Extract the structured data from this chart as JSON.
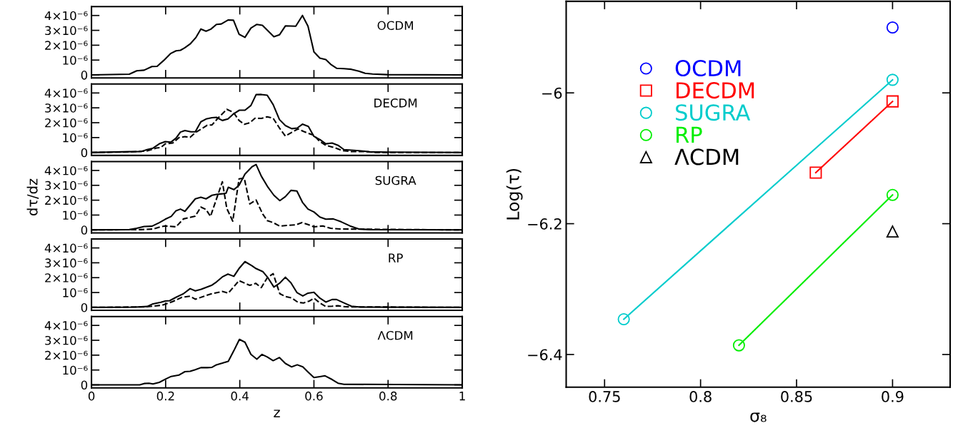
{
  "chart_data": [
    {
      "type": "line",
      "annotations": [
        "OCDM"
      ],
      "xlim": [
        0,
        1
      ],
      "xticks": [
        0,
        0.2,
        0.4,
        0.6,
        0.8,
        1
      ],
      "ylim": [
        -2e-07,
        4.6e-06
      ],
      "yticks": [
        0,
        {
          "value": 1e-06,
          "label": "10⁻⁶"
        },
        {
          "value": 2e-06,
          "label": "2×10⁻⁶"
        },
        {
          "value": 3e-06,
          "label": "3×10⁻⁶"
        },
        {
          "value": 4e-06,
          "label": "4×10⁻⁶"
        }
      ],
      "tick_labels": "y",
      "grid": false,
      "legend": false,
      "series": [
        {
          "color": "#000000",
          "line_style": "solid",
          "x": [
            0,
            0.102,
            0.122,
            0.142,
            0.163,
            0.177,
            0.195,
            0.214,
            0.228,
            0.24,
            0.252,
            0.266,
            0.282,
            0.295,
            0.309,
            0.322,
            0.337,
            0.35,
            0.369,
            0.383,
            0.398,
            0.414,
            0.43,
            0.446,
            0.461,
            0.492,
            0.507,
            0.523,
            0.551,
            0.569,
            0.584,
            0.6,
            0.616,
            0.632,
            0.645,
            0.661,
            0.681,
            0.701,
            0.721,
            0.738,
            0.758,
            0.798,
            1
          ],
          "values": [
            0,
            5e-08,
            2.8e-07,
            3.2e-07,
            5.7e-07,
            5.8e-07,
            9.8e-07,
            1.45e-06,
            1.62e-06,
            1.66e-06,
            1.83e-06,
            2.08e-06,
            2.53e-06,
            3.09e-06,
            2.94e-06,
            3.08e-06,
            3.4e-06,
            3.43e-06,
            3.7e-06,
            3.68e-06,
            2.74e-06,
            2.53e-06,
            3.15e-06,
            3.4e-06,
            3.34e-06,
            2.57e-06,
            2.7e-06,
            3.3e-06,
            3.28e-06,
            4e-06,
            3.28e-06,
            1.55e-06,
            1.13e-06,
            1.04e-06,
            7.2e-07,
            4.5e-07,
            4.2e-07,
            3.8e-07,
            2.6e-07,
            1.1e-07,
            6e-08,
            2e-08,
            0
          ]
        }
      ]
    },
    {
      "type": "line",
      "annotations": [
        "DECDM"
      ],
      "xlim": [
        0,
        1
      ],
      "xticks": [
        0,
        0.2,
        0.4,
        0.6,
        0.8,
        1
      ],
      "ylim": [
        -2e-07,
        4.6e-06
      ],
      "yticks": [
        0,
        {
          "value": 1e-06,
          "label": "10⁻⁶"
        },
        {
          "value": 2e-06,
          "label": "2×10⁻⁶"
        },
        {
          "value": 3e-06,
          "label": "3×10⁻⁶"
        },
        {
          "value": 4e-06,
          "label": "4×10⁻⁶"
        }
      ],
      "tick_labels": "y",
      "grid": false,
      "legend": false,
      "series": [
        {
          "color": "#000000",
          "line_style": "solid",
          "x": [
            0,
            0.102,
            0.134,
            0.15,
            0.166,
            0.183,
            0.199,
            0.214,
            0.228,
            0.24,
            0.252,
            0.268,
            0.28,
            0.295,
            0.309,
            0.325,
            0.337,
            0.353,
            0.368,
            0.384,
            0.399,
            0.414,
            0.43,
            0.444,
            0.458,
            0.474,
            0.49,
            0.507,
            0.523,
            0.54,
            0.555,
            0.569,
            0.585,
            0.6,
            0.616,
            0.632,
            0.649,
            0.665,
            0.681,
            0.701,
            0.721,
            0.75,
            0.798,
            1
          ],
          "values": [
            0,
            5e-08,
            6e-08,
            1.9e-07,
            2.9e-07,
            5.8e-07,
            7.3e-07,
            6.9e-07,
            9.6e-07,
            1.37e-06,
            1.47e-06,
            1.39e-06,
            1.39e-06,
            2.06e-06,
            2.25e-06,
            2.34e-06,
            2.36e-06,
            2.15e-06,
            2.25e-06,
            2.61e-06,
            2.84e-06,
            2.84e-06,
            3.16e-06,
            3.89e-06,
            3.9e-06,
            3.85e-06,
            3.22e-06,
            2.21e-06,
            1.81e-06,
            1.6e-06,
            1.64e-06,
            1.9e-06,
            1.75e-06,
            1.08e-06,
            8.7e-07,
            5.8e-07,
            6.3e-07,
            4.8e-07,
            1.9e-07,
            1.5e-07,
            1.2e-07,
            4e-08,
            2e-08,
            0
          ]
        },
        {
          "color": "#000000",
          "line_style": "dashed",
          "x": [
            0,
            0.102,
            0.15,
            0.175,
            0.187,
            0.199,
            0.219,
            0.236,
            0.252,
            0.266,
            0.28,
            0.296,
            0.312,
            0.325,
            0.341,
            0.365,
            0.383,
            0.398,
            0.412,
            0.427,
            0.441,
            0.458,
            0.474,
            0.49,
            0.507,
            0.523,
            0.54,
            0.557,
            0.572,
            0.588,
            0.6,
            0.616,
            0.632,
            0.652,
            0.677,
            0.701,
            0.738,
            0.766,
            1
          ],
          "values": [
            0,
            3e-08,
            1e-07,
            3e-07,
            3.3e-07,
            5.8e-07,
            6.3e-07,
            1e-06,
            1.06e-06,
            1.02e-06,
            1.33e-06,
            1.58e-06,
            1.83e-06,
            1.85e-06,
            2.3e-06,
            2.9e-06,
            2.69e-06,
            2.15e-06,
            1.89e-06,
            2e-06,
            2.3e-06,
            2.29e-06,
            2.4e-06,
            2.3e-06,
            1.64e-06,
            1.1e-06,
            1.35e-06,
            1.58e-06,
            1.41e-06,
            1.26e-06,
            1.15e-06,
            7.3e-07,
            4.8e-07,
            3.5e-07,
            1.2e-07,
            6e-08,
            6e-08,
            0,
            0
          ]
        }
      ]
    },
    {
      "type": "line",
      "annotations": [
        "SUGRA"
      ],
      "ylabel": "dτ/dz",
      "xlim": [
        0,
        1
      ],
      "xticks": [
        0,
        0.2,
        0.4,
        0.6,
        0.8,
        1
      ],
      "ylim": [
        -2e-07,
        4.6e-06
      ],
      "yticks": [
        0,
        {
          "value": 1e-06,
          "label": "10⁻⁶"
        },
        {
          "value": 2e-06,
          "label": "2×10⁻⁶"
        },
        {
          "value": 3e-06,
          "label": "3×10⁻⁶"
        },
        {
          "value": 4e-06,
          "label": "4×10⁻⁶"
        }
      ],
      "tick_labels": "y",
      "grid": false,
      "legend": false,
      "series": [
        {
          "color": "#000000",
          "line_style": "solid",
          "x": [
            0,
            0.102,
            0.122,
            0.142,
            0.163,
            0.183,
            0.199,
            0.215,
            0.228,
            0.24,
            0.252,
            0.266,
            0.28,
            0.295,
            0.309,
            0.325,
            0.337,
            0.353,
            0.363,
            0.369,
            0.384,
            0.398,
            0.414,
            0.433,
            0.444,
            0.458,
            0.476,
            0.492,
            0.508,
            0.523,
            0.538,
            0.554,
            0.569,
            0.584,
            0.6,
            0.616,
            0.632,
            0.652,
            0.673,
            0.697,
            0.721,
            0.75,
            1
          ],
          "values": [
            0,
            2e-08,
            1.1e-07,
            2.3e-07,
            2.5e-07,
            4.9e-07,
            7.2e-07,
            9.1e-07,
            1.29e-06,
            1.4e-06,
            1.25e-06,
            1.67e-06,
            2.09e-06,
            2.2e-06,
            2.09e-06,
            2.33e-06,
            2.39e-06,
            2.43e-06,
            2.47e-06,
            2.87e-06,
            2.71e-06,
            3e-06,
            3.76e-06,
            4.25e-06,
            4.4e-06,
            3.62e-06,
            2.87e-06,
            2.33e-06,
            1.97e-06,
            2.24e-06,
            2.66e-06,
            2.62e-06,
            1.86e-06,
            1.4e-06,
            1.21e-06,
            8.7e-07,
            7.2e-07,
            7.4e-07,
            5.5e-07,
            2.7e-07,
            6e-08,
            2e-08,
            0
          ]
        },
        {
          "color": "#000000",
          "line_style": "dashed",
          "x": [
            0,
            0.134,
            0.166,
            0.187,
            0.199,
            0.228,
            0.248,
            0.28,
            0.295,
            0.309,
            0.321,
            0.353,
            0.365,
            0.381,
            0.398,
            0.412,
            0.427,
            0.444,
            0.462,
            0.474,
            0.49,
            0.508,
            0.527,
            0.551,
            0.568,
            0.584,
            0.6,
            0.624,
            0.645,
            0.67,
            1
          ],
          "values": [
            0,
            2e-08,
            6e-08,
            2.1e-07,
            2.7e-07,
            2.1e-07,
            7.4e-07,
            9.3e-07,
            1.54e-06,
            1.37e-06,
            9.1e-07,
            3.24e-06,
            1.44e-06,
            5.9e-07,
            3.43e-06,
            3.49e-06,
            1.75e-06,
            2.01e-06,
            1.06e-06,
            6.3e-07,
            4.9e-07,
            2.5e-07,
            3e-07,
            3.4e-07,
            4.9e-07,
            3.6e-07,
            2.1e-07,
            2.7e-07,
            1.1e-07,
            6e-08,
            0
          ]
        }
      ]
    },
    {
      "type": "line",
      "annotations": [
        "RP"
      ],
      "xlim": [
        0,
        1
      ],
      "xticks": [
        0,
        0.2,
        0.4,
        0.6,
        0.8,
        1
      ],
      "ylim": [
        -2e-07,
        4.6e-06
      ],
      "yticks": [
        0,
        {
          "value": 1e-06,
          "label": "10⁻⁶"
        },
        {
          "value": 2e-06,
          "label": "2×10⁻⁶"
        },
        {
          "value": 3e-06,
          "label": "3×10⁻⁶"
        },
        {
          "value": 4e-06,
          "label": "4×10⁻⁶"
        }
      ],
      "tick_labels": "y",
      "grid": false,
      "legend": false,
      "series": [
        {
          "color": "#000000",
          "line_style": "solid",
          "x": [
            0,
            0.118,
            0.15,
            0.166,
            0.187,
            0.199,
            0.211,
            0.228,
            0.248,
            0.266,
            0.28,
            0.296,
            0.325,
            0.337,
            0.353,
            0.368,
            0.384,
            0.399,
            0.414,
            0.433,
            0.444,
            0.462,
            0.476,
            0.492,
            0.507,
            0.523,
            0.538,
            0.554,
            0.57,
            0.584,
            0.6,
            0.616,
            0.632,
            0.649,
            0.661,
            0.681,
            0.701,
            0.726,
            1
          ],
          "values": [
            0,
            2e-08,
            6e-08,
            2.4e-07,
            3.4e-07,
            4.3e-07,
            4.5e-07,
            6.8e-07,
            9.2e-07,
            1.26e-06,
            1.11e-06,
            1.22e-06,
            1.5e-06,
            1.71e-06,
            2.05e-06,
            2.24e-06,
            2.09e-06,
            2.65e-06,
            3.08e-06,
            2.8e-06,
            2.61e-06,
            2.41e-06,
            1.99e-06,
            1.37e-06,
            1.62e-06,
            2.03e-06,
            1.65e-06,
            1e-06,
            7.7e-07,
            9.6e-07,
            1.02e-06,
            6.2e-07,
            3.6e-07,
            5.3e-07,
            5.3e-07,
            3e-07,
            8e-08,
            2e-08,
            0
          ]
        },
        {
          "color": "#000000",
          "line_style": "dashed",
          "x": [
            0,
            0.15,
            0.191,
            0.219,
            0.244,
            0.266,
            0.28,
            0.304,
            0.321,
            0.353,
            0.369,
            0.398,
            0.427,
            0.443,
            0.458,
            0.474,
            0.49,
            0.508,
            0.523,
            0.54,
            0.557,
            0.572,
            0.588,
            0.6,
            0.616,
            0.632,
            0.649,
            0.665,
            0.685,
            1
          ],
          "values": [
            0,
            4e-08,
            1.5e-07,
            3.9e-07,
            6.8e-07,
            7.5e-07,
            5.5e-07,
            7.5e-07,
            9e-07,
            1.07e-06,
            9.6e-07,
            1.8e-06,
            1.48e-06,
            1.62e-06,
            1.33e-06,
            1.99e-06,
            2.27e-06,
            9.2e-07,
            7.3e-07,
            6.4e-07,
            3.4e-07,
            3e-07,
            4.3e-07,
            6.2e-07,
            3e-07,
            6e-08,
            8e-08,
            1.1e-07,
            4e-08,
            0
          ]
        }
      ]
    },
    {
      "type": "line",
      "annotations": [
        "ΛCDM"
      ],
      "xlabel": "z",
      "xlim": [
        0,
        1
      ],
      "xticks": [
        0,
        0.2,
        0.4,
        0.6,
        0.8,
        1
      ],
      "ylim": [
        -2e-07,
        4.6e-06
      ],
      "yticks": [
        0,
        {
          "value": 1e-06,
          "label": "10⁻⁶"
        },
        {
          "value": 2e-06,
          "label": "2×10⁻⁶"
        },
        {
          "value": 3e-06,
          "label": "3×10⁻⁶"
        },
        {
          "value": 4e-06,
          "label": "4×10⁻⁶"
        }
      ],
      "grid": false,
      "legend": false,
      "series": [
        {
          "color": "#000000",
          "line_style": "solid",
          "x": [
            0,
            0.13,
            0.142,
            0.155,
            0.166,
            0.183,
            0.199,
            0.215,
            0.236,
            0.252,
            0.266,
            0.28,
            0.295,
            0.312,
            0.325,
            0.337,
            0.353,
            0.369,
            0.384,
            0.399,
            0.414,
            0.43,
            0.446,
            0.46,
            0.474,
            0.49,
            0.507,
            0.523,
            0.54,
            0.555,
            0.57,
            0.584,
            0.6,
            0.616,
            0.63,
            0.649,
            0.665,
            0.681,
            1
          ],
          "values": [
            0,
            0,
            9e-08,
            1.1e-07,
            6e-08,
            1.7e-07,
            3.8e-07,
            5.7e-07,
            6.6e-07,
            8.9e-07,
            9.1e-07,
            1.02e-06,
            1.16e-06,
            1.16e-06,
            1.18e-06,
            1.35e-06,
            1.46e-06,
            1.59e-06,
            2.3e-06,
            3.06e-06,
            2.87e-06,
            2.05e-06,
            1.73e-06,
            2.05e-06,
            1.88e-06,
            1.63e-06,
            1.84e-06,
            1.44e-06,
            1.21e-06,
            1.35e-06,
            1.21e-06,
            8.7e-07,
            4.9e-07,
            5.5e-07,
            6.1e-07,
            3.6e-07,
            1.1e-07,
            4e-08,
            0
          ]
        }
      ]
    },
    {
      "type": "line",
      "xlabel": "σ₈",
      "ylabel": "Log(τ)",
      "xlim": [
        0.73,
        0.93
      ],
      "xticks": [
        0.75,
        0.8,
        0.85,
        0.9
      ],
      "ylim": [
        -6.45,
        -5.86
      ],
      "yticks": [
        {
          "value": -6,
          "label": "−6"
        },
        {
          "value": -6.2,
          "label": "−6.2"
        },
        {
          "value": -6.4,
          "label": "−6.4"
        }
      ],
      "grid": false,
      "legend": "top left",
      "series": [
        {
          "name": "OCDM",
          "type": "scatter",
          "color": "#0000ff",
          "marker": "circle",
          "x": [
            0.9
          ],
          "values": [
            -5.9
          ]
        },
        {
          "name": "DECDM",
          "type": "line",
          "color": "#ff0000",
          "marker": "square",
          "line_style": "solid",
          "x": [
            0.86,
            0.9
          ],
          "values": [
            -6.122,
            -6.013
          ]
        },
        {
          "name": "SUGRA",
          "type": "line",
          "color": "#00cccc",
          "marker": "circle",
          "line_style": "solid",
          "x": [
            0.76,
            0.9
          ],
          "values": [
            -6.346,
            -5.98
          ]
        },
        {
          "name": "RP",
          "type": "line",
          "color": "#00ee00",
          "marker": "circle",
          "line_style": "solid",
          "x": [
            0.82,
            0.9
          ],
          "values": [
            -6.386,
            -6.156
          ]
        },
        {
          "name": "ΛCDM",
          "type": "scatter",
          "color": "#000000",
          "marker": "triangle",
          "x": [
            0.9
          ],
          "values": [
            -6.212
          ]
        }
      ]
    }
  ]
}
